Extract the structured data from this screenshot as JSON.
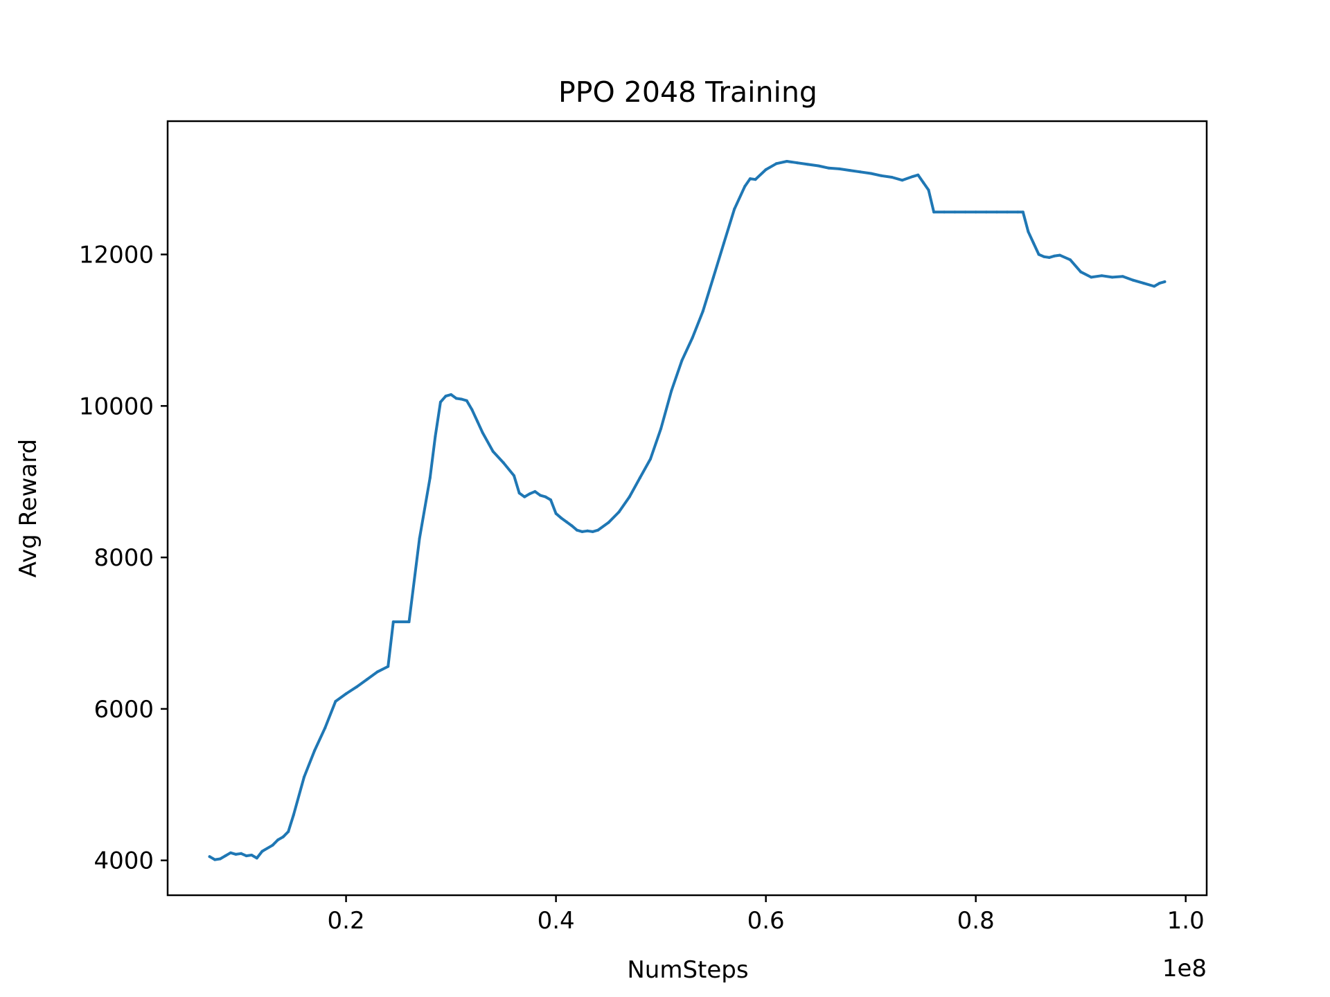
{
  "chart_data": {
    "type": "line",
    "title": "PPO 2048 Training",
    "xlabel": "NumSteps",
    "ylabel": "Avg Reward",
    "x_offset_label": "1e8",
    "xlim": [
      0.03,
      1.02
    ],
    "ylim": [
      3540,
      13760
    ],
    "x_ticks": [
      0.2,
      0.4,
      0.6,
      0.8,
      1.0
    ],
    "x_tick_labels": [
      "0.2",
      "0.4",
      "0.6",
      "0.8",
      "1.0"
    ],
    "y_ticks": [
      4000,
      6000,
      8000,
      10000,
      12000
    ],
    "y_tick_labels": [
      "4000",
      "6000",
      "8000",
      "10000",
      "12000"
    ],
    "grid": false,
    "line_color": "#1f77b4",
    "series": [
      {
        "x": [
          0.07,
          0.075,
          0.08,
          0.085,
          0.09,
          0.095,
          0.1,
          0.105,
          0.11,
          0.115,
          0.12,
          0.13,
          0.135,
          0.14,
          0.145,
          0.15,
          0.16,
          0.17,
          0.18,
          0.19,
          0.2,
          0.21,
          0.22,
          0.23,
          0.24,
          0.245,
          0.26,
          0.27,
          0.28,
          0.285,
          0.29,
          0.295,
          0.3,
          0.305,
          0.31,
          0.315,
          0.32,
          0.325,
          0.33,
          0.34,
          0.35,
          0.36,
          0.365,
          0.37,
          0.375,
          0.38,
          0.385,
          0.39,
          0.395,
          0.4,
          0.405,
          0.41,
          0.415,
          0.42,
          0.425,
          0.43,
          0.435,
          0.44,
          0.45,
          0.46,
          0.47,
          0.48,
          0.49,
          0.5,
          0.51,
          0.52,
          0.53,
          0.54,
          0.55,
          0.56,
          0.57,
          0.58,
          0.585,
          0.59,
          0.6,
          0.61,
          0.62,
          0.63,
          0.64,
          0.65,
          0.66,
          0.67,
          0.68,
          0.69,
          0.7,
          0.71,
          0.72,
          0.73,
          0.74,
          0.745,
          0.75,
          0.755,
          0.76,
          0.77,
          0.78,
          0.79,
          0.8,
          0.81,
          0.82,
          0.83,
          0.84,
          0.845,
          0.85,
          0.855,
          0.86,
          0.865,
          0.87,
          0.875,
          0.88,
          0.89,
          0.9,
          0.91,
          0.92,
          0.93,
          0.94,
          0.95,
          0.96,
          0.97,
          0.975,
          0.98
        ],
        "y": [
          4050,
          4010,
          4020,
          4060,
          4100,
          4080,
          4090,
          4060,
          4070,
          4030,
          4120,
          4200,
          4270,
          4310,
          4380,
          4600,
          5100,
          5450,
          5750,
          6100,
          6200,
          6290,
          6390,
          6490,
          6560,
          7150,
          7150,
          8250,
          9050,
          9600,
          10050,
          10130,
          10150,
          10100,
          10090,
          10070,
          9950,
          9800,
          9650,
          9400,
          9250,
          9080,
          8850,
          8800,
          8840,
          8870,
          8820,
          8800,
          8760,
          8580,
          8520,
          8470,
          8420,
          8360,
          8340,
          8350,
          8340,
          8360,
          8460,
          8600,
          8800,
          9050,
          9300,
          9700,
          10200,
          10600,
          10900,
          11250,
          11700,
          12150,
          12600,
          12900,
          13000,
          12990,
          13120,
          13200,
          13230,
          13210,
          13190,
          13170,
          13140,
          13130,
          13110,
          13090,
          13070,
          13040,
          13020,
          12980,
          13030,
          13050,
          12950,
          12850,
          12560,
          12560,
          12560,
          12560,
          12560,
          12560,
          12560,
          12560,
          12560,
          12560,
          12300,
          12150,
          12000,
          11970,
          11960,
          11980,
          11990,
          11930,
          11770,
          11700,
          11720,
          11700,
          11710,
          11660,
          11620,
          11580,
          11620,
          11640
        ]
      }
    ]
  }
}
